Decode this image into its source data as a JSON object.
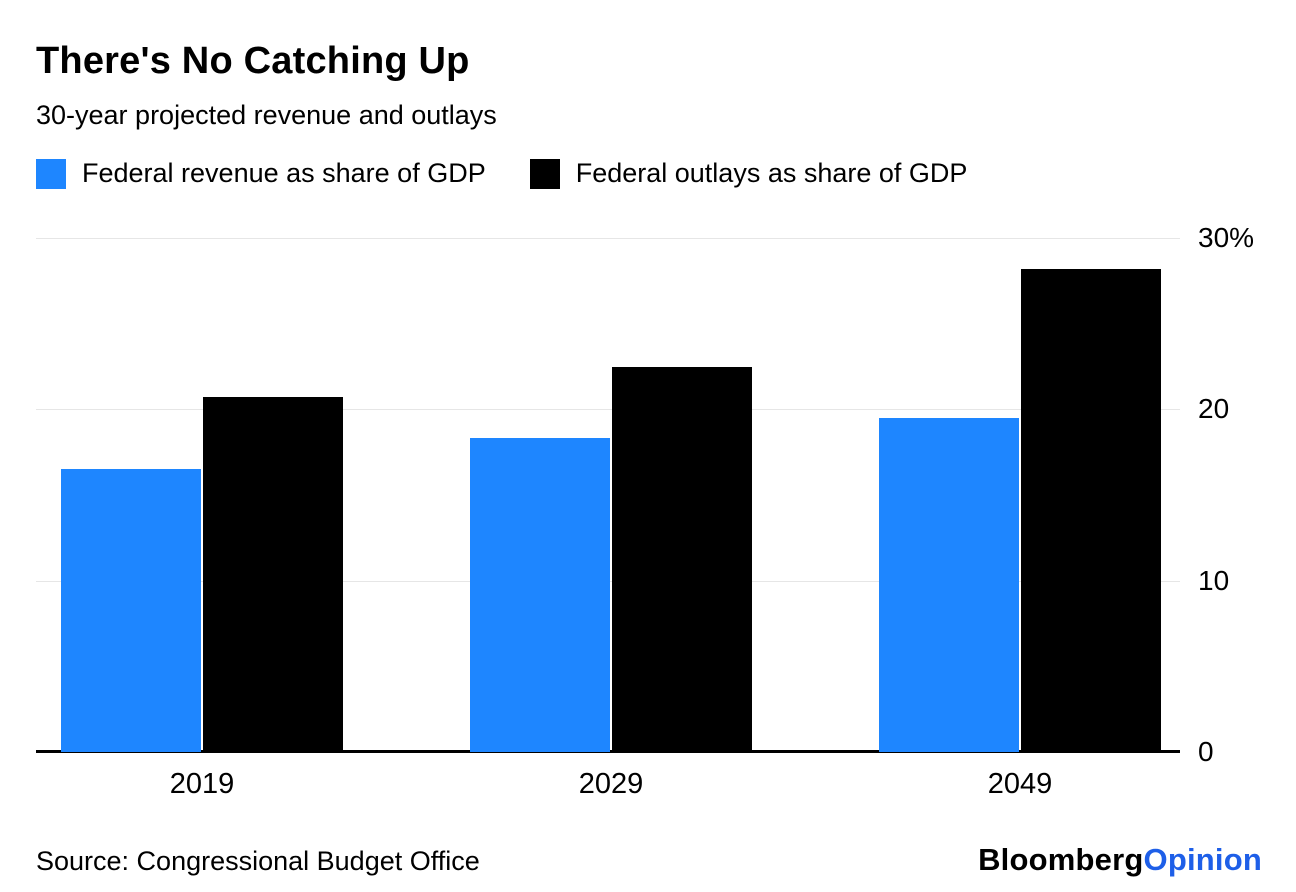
{
  "header": {
    "title": "There's No Catching Up",
    "subtitle": "30-year projected revenue and outlays"
  },
  "legend": {
    "items": [
      {
        "label": "Federal revenue as share of GDP",
        "color": "#1e86ff"
      },
      {
        "label": "Federal outlays as share of GDP",
        "color": "#000000"
      }
    ]
  },
  "chart_data": {
    "type": "bar",
    "title": "There's No Catching Up",
    "subtitle": "30-year projected revenue and outlays",
    "categories": [
      "2019",
      "2029",
      "2049"
    ],
    "series": [
      {
        "name": "Federal revenue as share of GDP",
        "color": "#1e86ff",
        "values": [
          16.5,
          18.3,
          19.5
        ]
      },
      {
        "name": "Federal outlays as share of GDP",
        "color": "#000000",
        "values": [
          20.7,
          22.5,
          28.2
        ]
      }
    ],
    "unit": "% of GDP",
    "ylim": [
      0,
      30
    ],
    "yticks": [
      0,
      10,
      20,
      30
    ],
    "ytick_labels": [
      "0",
      "10",
      "20",
      "30%"
    ],
    "grid": "horizontal",
    "legend_position": "top",
    "xlabel": "",
    "ylabel": ""
  },
  "footer": {
    "source": "Source: Congressional Budget Office",
    "logo_bloomberg": "Bloomberg",
    "logo_opinion": "Opinion"
  },
  "colors": {
    "revenue_blue": "#1e86ff",
    "outlays_black": "#000000",
    "gridline": "#e6e6e6",
    "opinion_blue": "#1e5fe8",
    "background": "#ffffff"
  }
}
